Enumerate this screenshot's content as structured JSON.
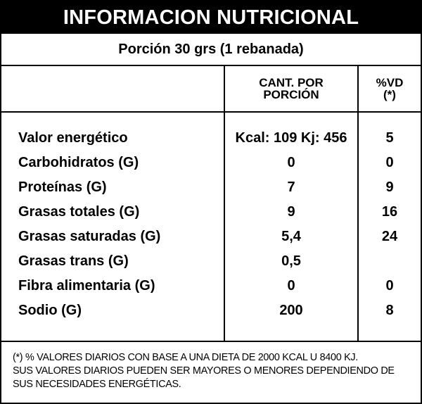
{
  "title": "INFORMACION NUTRICIONAL",
  "portion": "Porción 30 grs (1 rebanada)",
  "headers": {
    "quantity": "CANT. POR\nPORCIÓN",
    "daily_value": "%VD\n(*)"
  },
  "rows": [
    {
      "name": "Valor energético",
      "quantity": "Kcal: 109 Kj: 456",
      "daily_value": "5"
    },
    {
      "name": "Carbohidratos (G)",
      "quantity": "0",
      "daily_value": "0"
    },
    {
      "name": "Proteínas (G)",
      "quantity": "7",
      "daily_value": "9"
    },
    {
      "name": "Grasas totales (G)",
      "quantity": "9",
      "daily_value": "16"
    },
    {
      "name": "Grasas saturadas (G)",
      "quantity": "5,4",
      "daily_value": "24"
    },
    {
      "name": "Grasas trans (G)",
      "quantity": "0,5",
      "daily_value": ""
    },
    {
      "name": "Fibra alimentaria (G)",
      "quantity": "0",
      "daily_value": "0"
    },
    {
      "name": "Sodio (G)",
      "quantity": "200",
      "daily_value": "8"
    }
  ],
  "footnote": [
    "(*) % VALORES DIARIOS CON BASE A UNA DIETA DE 2000 KCAL U 8400 KJ.",
    "SUS VALORES DIARIOS PUEDEN SER MAYORES O MENORES DEPENDIENDO DE",
    "SUS NECESIDADES ENERGÉTICAS."
  ]
}
